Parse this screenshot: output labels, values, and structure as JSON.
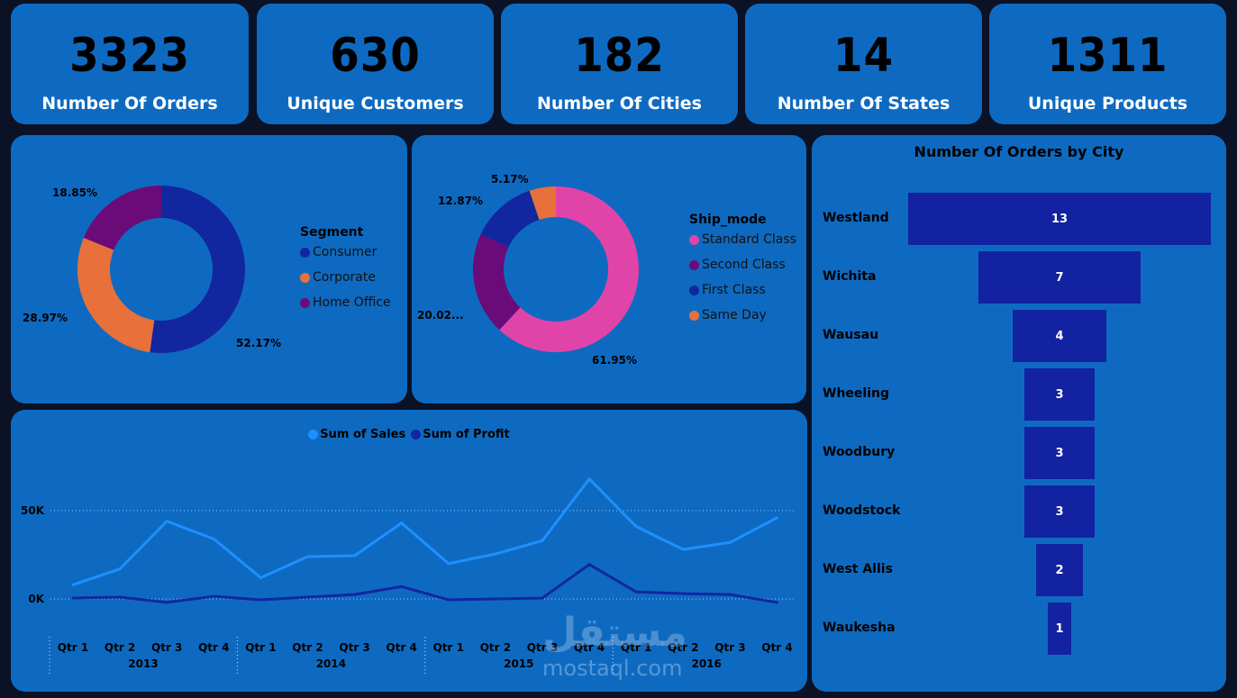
{
  "kpis": [
    {
      "value": "3323",
      "label": "Number Of Orders"
    },
    {
      "value": "630",
      "label": "Unique Customers"
    },
    {
      "value": "182",
      "label": "Number Of Cities"
    },
    {
      "value": "14",
      "label": "Number Of States"
    },
    {
      "value": "1311",
      "label": "Unique Products"
    }
  ],
  "segment_chart": {
    "legend_title": "Segment",
    "slices": [
      {
        "name": "Consumer",
        "value": 52.17,
        "label": "52.17%",
        "color": "#1226a0"
      },
      {
        "name": "Corporate",
        "value": 28.97,
        "label": "28.97%",
        "color": "#e8703a"
      },
      {
        "name": "Home Office",
        "value": 18.85,
        "label": "18.85%",
        "color": "#6b0b7a"
      }
    ]
  },
  "ship_chart": {
    "legend_title": "Ship_mode",
    "slices": [
      {
        "name": "Standard Class",
        "value": 61.95,
        "label": "61.95%",
        "color": "#e044a8"
      },
      {
        "name": "Second Class",
        "value": 20.02,
        "label": "20.02...",
        "color": "#6b0b7a"
      },
      {
        "name": "First Class",
        "value": 12.87,
        "label": "12.87%",
        "color": "#1226a0"
      },
      {
        "name": "Same Day",
        "value": 5.17,
        "label": "5.17%",
        "color": "#e8703a"
      }
    ]
  },
  "chart_data": {
    "type": "line",
    "x": [
      "Qtr 1",
      "Qtr 2",
      "Qtr 3",
      "Qtr 4",
      "Qtr 1",
      "Qtr 2",
      "Qtr 3",
      "Qtr 4",
      "Qtr 1",
      "Qtr 2",
      "Qtr 3",
      "Qtr 4",
      "Qtr 1",
      "Qtr 2",
      "Qtr 3",
      "Qtr 4"
    ],
    "years": [
      "2013",
      "2014",
      "2015",
      "2016"
    ],
    "yticks": [
      "0K",
      "50K"
    ],
    "ylim": [
      -10000,
      70000
    ],
    "grid": true,
    "legend_position": "top-center",
    "series": [
      {
        "name": "Sum of Sales",
        "color": "#1e90ff",
        "values": [
          8000,
          17000,
          44000,
          34000,
          12000,
          24000,
          24500,
          43000,
          20000,
          25500,
          33000,
          68000,
          41000,
          28000,
          32000,
          46000
        ]
      },
      {
        "name": "Sum of Profit",
        "color": "#1226a0",
        "values": [
          500,
          1000,
          -2000,
          1500,
          -500,
          1000,
          2500,
          7000,
          -500,
          0,
          500,
          19500,
          4000,
          3000,
          2500,
          -2000
        ]
      }
    ]
  },
  "funnel": {
    "title": "Number Of Orders  by City",
    "color": "#1222a0",
    "items": [
      {
        "city": "Westland",
        "value": 13
      },
      {
        "city": "Wichita",
        "value": 7
      },
      {
        "city": "Wausau",
        "value": 4
      },
      {
        "city": "Wheeling",
        "value": 3
      },
      {
        "city": "Woodbury",
        "value": 3
      },
      {
        "city": "Woodstock",
        "value": 3
      },
      {
        "city": "West Allis",
        "value": 2
      },
      {
        "city": "Waukesha",
        "value": 1
      }
    ]
  },
  "watermark": {
    "text": "mostaql.com",
    "arabic": "مستقل"
  }
}
